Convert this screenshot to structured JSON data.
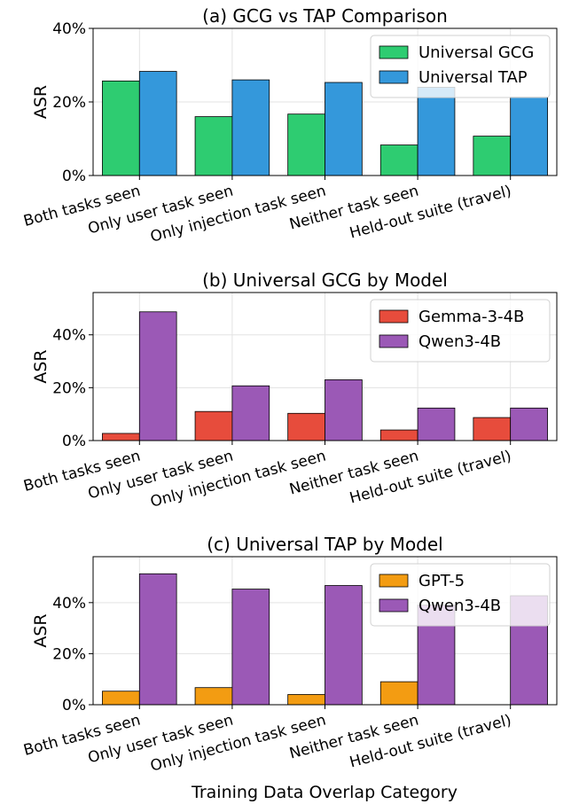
{
  "xlabel": "Training Data Overlap Category",
  "chart_data": [
    {
      "type": "bar",
      "title": "(a) GCG vs TAP Comparison",
      "ylabel": "ASR",
      "xlabel": "",
      "ylim": [
        0,
        40
      ],
      "yticks": [
        "0%",
        "20%",
        "40%"
      ],
      "yticks_values": [
        0,
        20,
        40
      ],
      "grid": true,
      "legend": "top-right",
      "categories": [
        "Both tasks seen",
        "Only user task seen",
        "Only injection task seen",
        "Neither task seen",
        "Held-out suite (travel)"
      ],
      "series": [
        {
          "name": "Universal GCG",
          "color": "#2ecc71",
          "values": [
            25.7,
            16.0,
            16.7,
            8.3,
            10.7
          ]
        },
        {
          "name": "Universal TAP",
          "color": "#3498db",
          "values": [
            28.3,
            26.0,
            25.3,
            24.0,
            21.3
          ]
        }
      ]
    },
    {
      "type": "bar",
      "title": "(b) Universal GCG by Model",
      "ylabel": "ASR",
      "xlabel": "",
      "ylim": [
        0,
        56
      ],
      "yticks": [
        "0%",
        "20%",
        "40%"
      ],
      "yticks_values": [
        0,
        20,
        40
      ],
      "grid": true,
      "legend": "top-right",
      "categories": [
        "Both tasks seen",
        "Only user task seen",
        "Only injection task seen",
        "Neither task seen",
        "Held-out suite (travel)"
      ],
      "series": [
        {
          "name": "Gemma-3-4B",
          "color": "#e74c3c",
          "values": [
            2.7,
            11.0,
            10.3,
            4.0,
            8.7
          ]
        },
        {
          "name": "Qwen3-4B",
          "color": "#9b59b6",
          "values": [
            48.7,
            20.7,
            23.0,
            12.3,
            12.3
          ]
        }
      ]
    },
    {
      "type": "bar",
      "title": "(c) Universal TAP by Model",
      "ylabel": "ASR",
      "xlabel": "Training Data Overlap Category",
      "ylim": [
        0,
        58
      ],
      "yticks": [
        "0%",
        "20%",
        "40%"
      ],
      "yticks_values": [
        0,
        20,
        40
      ],
      "grid": true,
      "legend": "top-right",
      "categories": [
        "Both tasks seen",
        "Only user task seen",
        "Only injection task seen",
        "Neither task seen",
        "Held-out suite (travel)"
      ],
      "series": [
        {
          "name": "GPT-5",
          "color": "#f39c12",
          "values": [
            5.3,
            6.7,
            4.0,
            9.0,
            0
          ]
        },
        {
          "name": "Qwen3-4B",
          "color": "#9b59b6",
          "values": [
            51.3,
            45.3,
            46.7,
            39.0,
            42.7
          ]
        }
      ]
    }
  ]
}
